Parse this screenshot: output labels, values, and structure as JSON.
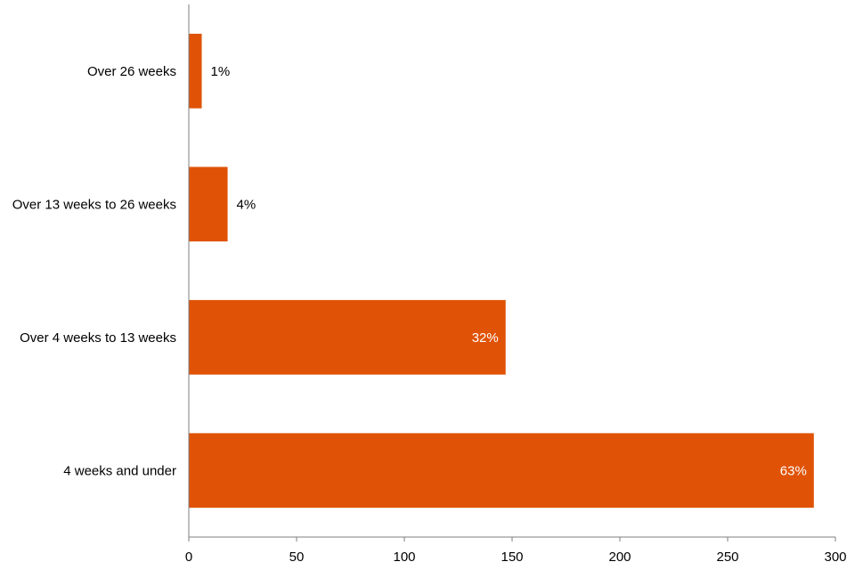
{
  "chart_data": {
    "type": "bar",
    "orientation": "horizontal",
    "categories": [
      "Over 26 weeks",
      "Over 13 weeks to 26 weeks",
      "Over 4 weeks to 13 weeks",
      "4 weeks and under"
    ],
    "values": [
      6,
      18,
      147,
      290
    ],
    "data_labels": [
      "1%",
      "4%",
      "32%",
      "63%"
    ],
    "x_ticks": [
      "0",
      "50",
      "100",
      "150",
      "200",
      "250",
      "300"
    ],
    "xlim": [
      0,
      300
    ],
    "title": "",
    "xlabel": "",
    "ylabel": "",
    "grid": false,
    "legend": "none",
    "bar_color": "#E05206"
  }
}
